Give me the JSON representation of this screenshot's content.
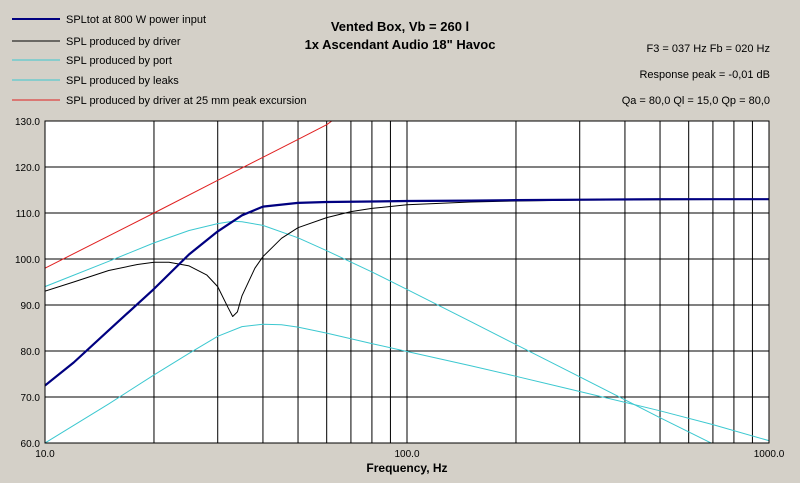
{
  "chart_data": {
    "type": "line",
    "title": "Vented Box, Vb = 260 l",
    "subtitle": "1x Ascendant Audio 18\" Havoc",
    "xlabel": "Frequency, Hz",
    "ylabel": "",
    "xscale": "log",
    "xlim": [
      10,
      1000
    ],
    "ylim": [
      60,
      130
    ],
    "grid": true,
    "legend_position": "top-left",
    "x_tick_labels": [
      "10.0",
      "100.0",
      "1000.0"
    ],
    "y_tick_labels": [
      "60.0",
      "70.0",
      "80.0",
      "90.0",
      "100.0",
      "110.0",
      "120.0",
      "130.0"
    ],
    "annotations": [
      "F3 = 037 Hz  Fb = 020 Hz",
      "Response peak = -0,01 dB",
      "Qa = 80,0  Ql = 15,0  Qp = 80,0"
    ],
    "series": [
      {
        "name": "SPLtot at 800 W power input",
        "color": "#000080",
        "x": [
          10,
          12,
          15,
          20,
          25,
          30,
          35,
          40,
          50,
          60,
          80,
          100,
          150,
          200,
          300,
          500,
          1000
        ],
        "y": [
          72.5,
          77.5,
          84.5,
          93.5,
          101,
          106,
          109.5,
          111.4,
          112.2,
          112.4,
          112.5,
          112.6,
          112.7,
          112.8,
          112.9,
          113,
          113
        ]
      },
      {
        "name": "SPL produced by driver",
        "color": "#000000",
        "x": [
          10,
          12,
          15,
          18,
          20,
          22,
          25,
          28,
          30,
          32,
          33,
          34,
          35,
          38,
          40,
          45,
          50,
          60,
          70,
          80,
          100,
          150,
          200,
          300,
          500,
          1000
        ],
        "y": [
          93,
          95,
          97.5,
          98.8,
          99.3,
          99.3,
          98.5,
          96.5,
          94,
          89.5,
          87.5,
          88.5,
          92,
          98,
          100.5,
          104.5,
          106.8,
          109,
          110.3,
          111,
          111.8,
          112.4,
          112.6,
          112.8,
          112.9,
          113
        ]
      },
      {
        "name": "SPL produced by port",
        "color": "#3cc8d0",
        "x": [
          10,
          15,
          20,
          25,
          30,
          33,
          35,
          40,
          50,
          60,
          80,
          100,
          150,
          200,
          300,
          500,
          700,
          1000
        ],
        "y": [
          94,
          99.5,
          103.5,
          106.2,
          107.7,
          108.2,
          108.1,
          107.3,
          104.6,
          101.8,
          97.2,
          93.4,
          86.4,
          81.4,
          74.4,
          65.5,
          59.8,
          53.9
        ]
      },
      {
        "name": "SPL produced by leaks",
        "color": "#3cc8d0",
        "x": [
          10,
          15,
          20,
          25,
          30,
          35,
          40,
          45,
          50,
          60,
          80,
          100,
          150,
          200,
          300,
          500,
          700,
          1000
        ],
        "y": [
          60,
          68.5,
          74.8,
          79.5,
          83.2,
          85.3,
          85.8,
          85.7,
          85.2,
          83.9,
          81.6,
          79.9,
          76.8,
          74.5,
          71.2,
          67,
          64,
          60.5
        ]
      },
      {
        "name": "SPL produced by driver at 25 mm peak excursion",
        "color": "#e02020",
        "x": [
          10,
          20,
          30,
          40,
          50,
          60,
          62
        ],
        "y": [
          98,
          110,
          117.1,
          122.1,
          126,
          129.2,
          130
        ]
      }
    ]
  }
}
